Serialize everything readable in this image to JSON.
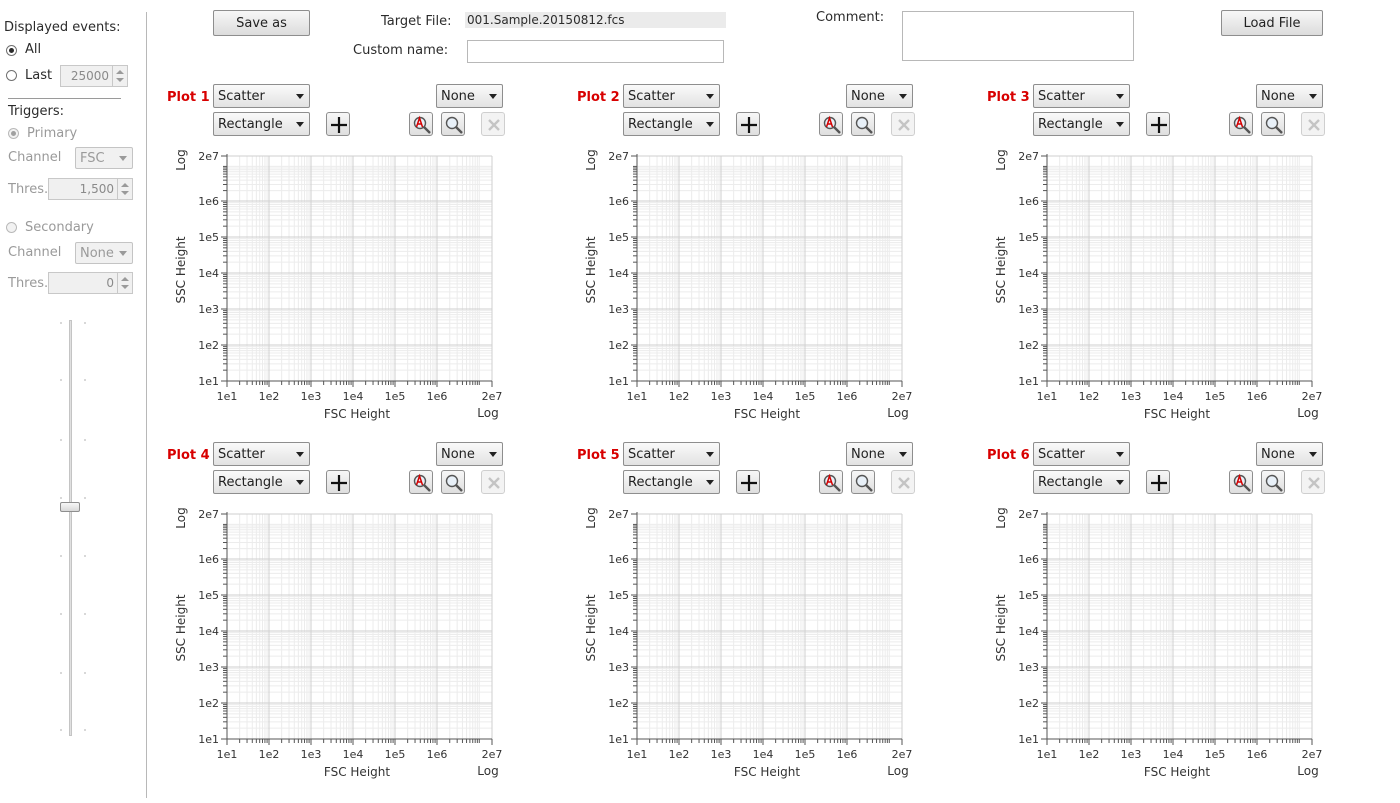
{
  "sidebar": {
    "displayed_events_label": "Displayed events:",
    "all_label": "All",
    "last_label": "Last",
    "last_value": "25000",
    "triggers_label": "Triggers:",
    "primary_label": "Primary",
    "primary_channel_label": "Channel",
    "primary_channel_value": "FSC",
    "primary_thres_label": "Thres.",
    "primary_thres_value": "1,500",
    "secondary_label": "Secondary",
    "secondary_channel_label": "Channel",
    "secondary_channel_value": "None",
    "secondary_thres_label": "Thres.",
    "secondary_thres_value": "0",
    "slider_level": 0.55
  },
  "header": {
    "save_as_label": "Save as",
    "target_file_label": "Target File:",
    "target_file_value": "001.Sample.20150812.fcs",
    "custom_name_label": "Custom name:",
    "custom_name_value": "",
    "comment_label": "Comment:",
    "comment_value": "",
    "load_file_label": "Load File"
  },
  "axes": {
    "x_ticks": [
      "1e1",
      "1e2",
      "1e3",
      "1e4",
      "1e5",
      "1e6",
      "2e7"
    ],
    "y_ticks": [
      "1e1",
      "1e2",
      "1e3",
      "1e4",
      "1e5",
      "1e6",
      "2e7"
    ],
    "x_label": "FSC  Height",
    "y_label": "SSC  Height",
    "x_scale_label": "Log",
    "y_scale_label": "Log"
  },
  "plots": [
    {
      "title": "Plot 1",
      "type_value": "Scatter",
      "overlay_value": "None",
      "gate_value": "Rectangle"
    },
    {
      "title": "Plot 2",
      "type_value": "Scatter",
      "overlay_value": "None",
      "gate_value": "Rectangle"
    },
    {
      "title": "Plot 3",
      "type_value": "Scatter",
      "overlay_value": "None",
      "gate_value": "Rectangle"
    },
    {
      "title": "Plot 4",
      "type_value": "Scatter",
      "overlay_value": "None",
      "gate_value": "Rectangle"
    },
    {
      "title": "Plot 5",
      "type_value": "Scatter",
      "overlay_value": "None",
      "gate_value": "Rectangle"
    },
    {
      "title": "Plot 6",
      "type_value": "Scatter",
      "overlay_value": "None",
      "gate_value": "Rectangle"
    }
  ],
  "chart_data": [
    {
      "type": "scatter",
      "title": "Plot 1",
      "xlabel": "FSC  Height",
      "ylabel": "SSC  Height",
      "xscale": "log",
      "yscale": "log",
      "xlim": [
        10,
        20000000
      ],
      "ylim": [
        10,
        20000000
      ],
      "points": [],
      "grid": true
    },
    {
      "type": "scatter",
      "title": "Plot 2",
      "xlabel": "FSC  Height",
      "ylabel": "SSC  Height",
      "xscale": "log",
      "yscale": "log",
      "xlim": [
        10,
        20000000
      ],
      "ylim": [
        10,
        20000000
      ],
      "points": [],
      "grid": true
    },
    {
      "type": "scatter",
      "title": "Plot 3",
      "xlabel": "FSC  Height",
      "ylabel": "SSC  Height",
      "xscale": "log",
      "yscale": "log",
      "xlim": [
        10,
        20000000
      ],
      "ylim": [
        10,
        20000000
      ],
      "points": [],
      "grid": true
    },
    {
      "type": "scatter",
      "title": "Plot 4",
      "xlabel": "FSC  Height",
      "ylabel": "SSC  Height",
      "xscale": "log",
      "yscale": "log",
      "xlim": [
        10,
        20000000
      ],
      "ylim": [
        10,
        20000000
      ],
      "points": [],
      "grid": true
    },
    {
      "type": "scatter",
      "title": "Plot 5",
      "xlabel": "FSC  Height",
      "ylabel": "SSC  Height",
      "xscale": "log",
      "yscale": "log",
      "xlim": [
        10,
        20000000
      ],
      "ylim": [
        10,
        20000000
      ],
      "points": [],
      "grid": true
    },
    {
      "type": "scatter",
      "title": "Plot 6",
      "xlabel": "FSC  Height",
      "ylabel": "SSC  Height",
      "xscale": "log",
      "yscale": "log",
      "xlim": [
        10,
        20000000
      ],
      "ylim": [
        10,
        20000000
      ],
      "points": [],
      "grid": true
    }
  ]
}
